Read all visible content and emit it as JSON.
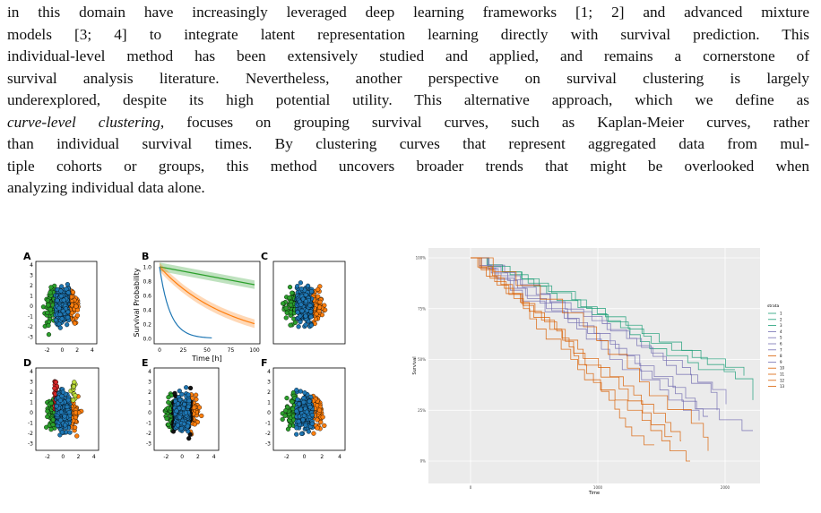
{
  "paragraph": {
    "lines": [
      "in this domain have increasingly leveraged deep learning frameworks [1; 2] and advanced mixture",
      "models [3; 4] to integrate latent representation learning directly with survival prediction. This",
      "individual-level method has been extensively studied and applied, and remains a cornerstone of",
      "survival analysis literature. Nevertheless, another perspective on survival clustering is largely",
      "underexplored, despite its high potential utility. This alternative approach, which we define as",
      ", focuses on grouping survival curves, such as Kaplan-Meier curves, rather",
      "than individual survival times. By clustering curves that represent aggregated data from mul-",
      "tiple cohorts or groups, this method uncovers broader trends that might be overlooked when",
      "analyzing individual data alone."
    ],
    "italic": "curve-level clustering"
  },
  "figure_left": {
    "panels": [
      "A",
      "B",
      "C",
      "D",
      "E",
      "F"
    ],
    "scatter_xticks": [
      -2,
      0,
      2,
      4
    ],
    "scatter_yticks": [
      4,
      3,
      2,
      1,
      0,
      -1,
      -2,
      -3
    ],
    "b_yticks": [
      "1.0",
      "0.8",
      "0.6",
      "0.4",
      "0.2",
      "0.0"
    ],
    "b_xticks": [
      0,
      25,
      50,
      75,
      100
    ],
    "b_ylabel": "Survival Probability",
    "b_xlabel": "Time [h]"
  },
  "figure_right": {
    "yticks": [
      "100%",
      "75%",
      "50%",
      "25%",
      "0%"
    ],
    "xticks": [
      0,
      1000,
      2000
    ],
    "xlabel": "Time",
    "ylabel": "Survival",
    "legend_title": "strata",
    "legend": [
      "1",
      "2",
      "3",
      "4",
      "5",
      "6",
      "7",
      "8",
      "9",
      "10",
      "11",
      "12",
      "13"
    ]
  }
}
